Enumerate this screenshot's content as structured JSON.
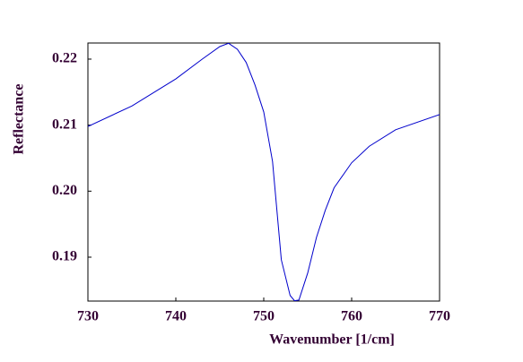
{
  "chart_data": {
    "type": "line",
    "xlabel": "Wavenumber [1/cm]",
    "ylabel": "Reflectance",
    "x": [
      730,
      735,
      740,
      743,
      745,
      746,
      747,
      748,
      749,
      750,
      751,
      752,
      753,
      753.5,
      754,
      755,
      756,
      757,
      758,
      760,
      762,
      765,
      770
    ],
    "series": [
      {
        "color": "#0000cc",
        "values": [
          0.2098,
          0.2129,
          0.217,
          0.22,
          0.2219,
          0.2224,
          0.2215,
          0.2195,
          0.2161,
          0.212,
          0.2045,
          0.1896,
          0.1842,
          0.1834,
          0.1835,
          0.1876,
          0.193,
          0.1971,
          0.2005,
          0.2043,
          0.2068,
          0.2093,
          0.2116
        ]
      }
    ],
    "xlim": [
      730,
      770
    ],
    "xticks": [
      730,
      740,
      750,
      760,
      770
    ],
    "ylim": [
      0.18335,
      0.22244
    ],
    "yticks": [
      0.19,
      {
        "value": 0.2,
        "label": "0.20"
      },
      0.21,
      0.22
    ]
  }
}
